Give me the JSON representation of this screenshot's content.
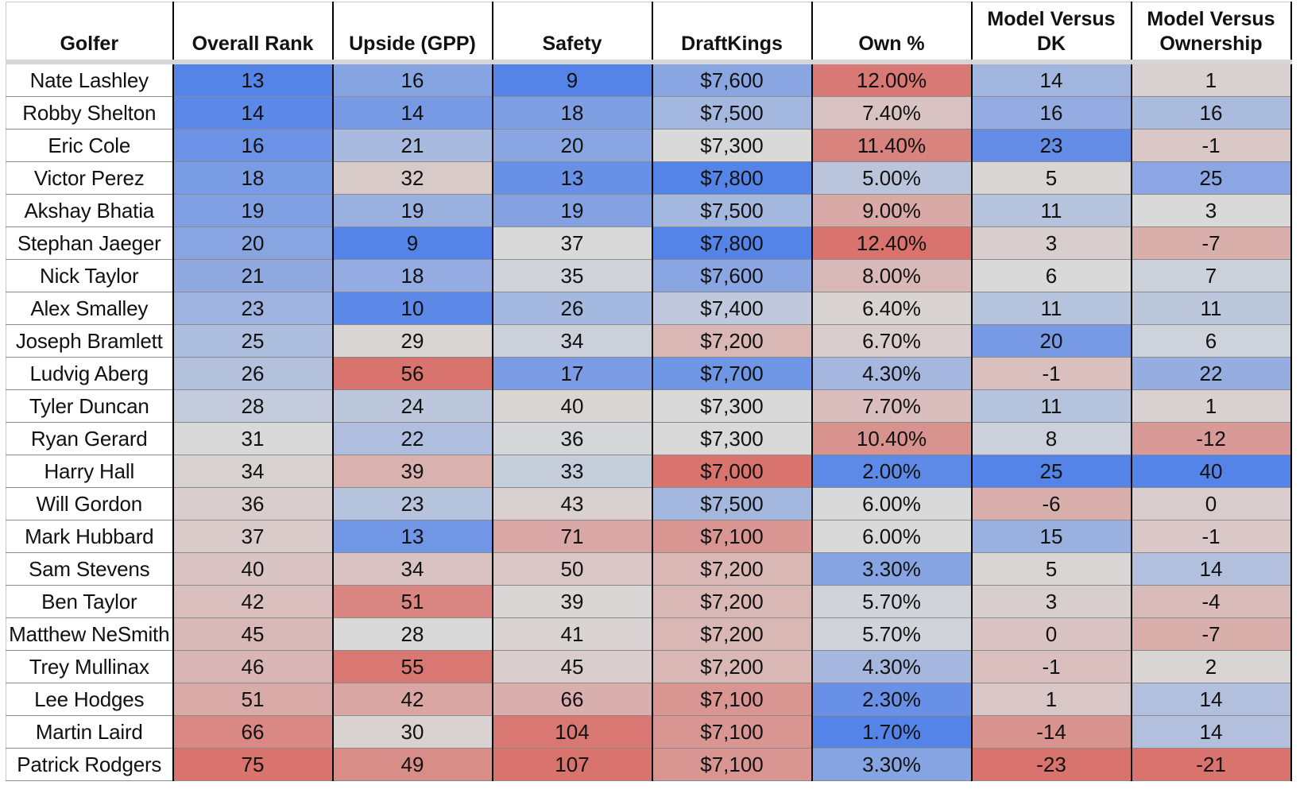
{
  "spreadsheet": {
    "columns": [
      "Golfer",
      "Overall Rank",
      "Upside (GPP)",
      "Safety",
      "DraftKings",
      "Own %",
      "Model Versus DK",
      "Model Versus Ownership"
    ],
    "rows": [
      {
        "golfer": "Nate Lashley",
        "overall_rank": "13",
        "upside_gpp": "16",
        "safety": "9",
        "draftkings": "$7,600",
        "own_pct": "12.00%",
        "model_vs_dk": "14",
        "model_vs_ownership": "1"
      },
      {
        "golfer": "Robby Shelton",
        "overall_rank": "14",
        "upside_gpp": "14",
        "safety": "18",
        "draftkings": "$7,500",
        "own_pct": "7.40%",
        "model_vs_dk": "16",
        "model_vs_ownership": "16"
      },
      {
        "golfer": "Eric Cole",
        "overall_rank": "16",
        "upside_gpp": "21",
        "safety": "20",
        "draftkings": "$7,300",
        "own_pct": "11.40%",
        "model_vs_dk": "23",
        "model_vs_ownership": "-1"
      },
      {
        "golfer": "Victor Perez",
        "overall_rank": "18",
        "upside_gpp": "32",
        "safety": "13",
        "draftkings": "$7,800",
        "own_pct": "5.00%",
        "model_vs_dk": "5",
        "model_vs_ownership": "25"
      },
      {
        "golfer": "Akshay Bhatia",
        "overall_rank": "19",
        "upside_gpp": "19",
        "safety": "19",
        "draftkings": "$7,500",
        "own_pct": "9.00%",
        "model_vs_dk": "11",
        "model_vs_ownership": "3"
      },
      {
        "golfer": "Stephan Jaeger",
        "overall_rank": "20",
        "upside_gpp": "9",
        "safety": "37",
        "draftkings": "$7,800",
        "own_pct": "12.40%",
        "model_vs_dk": "3",
        "model_vs_ownership": "-7"
      },
      {
        "golfer": "Nick Taylor",
        "overall_rank": "21",
        "upside_gpp": "18",
        "safety": "35",
        "draftkings": "$7,600",
        "own_pct": "8.00%",
        "model_vs_dk": "6",
        "model_vs_ownership": "7"
      },
      {
        "golfer": "Alex Smalley",
        "overall_rank": "23",
        "upside_gpp": "10",
        "safety": "26",
        "draftkings": "$7,400",
        "own_pct": "6.40%",
        "model_vs_dk": "11",
        "model_vs_ownership": "11"
      },
      {
        "golfer": "Joseph Bramlett",
        "overall_rank": "25",
        "upside_gpp": "29",
        "safety": "34",
        "draftkings": "$7,200",
        "own_pct": "6.70%",
        "model_vs_dk": "20",
        "model_vs_ownership": "6"
      },
      {
        "golfer": "Ludvig Aberg",
        "overall_rank": "26",
        "upside_gpp": "56",
        "safety": "17",
        "draftkings": "$7,700",
        "own_pct": "4.30%",
        "model_vs_dk": "-1",
        "model_vs_ownership": "22"
      },
      {
        "golfer": "Tyler Duncan",
        "overall_rank": "28",
        "upside_gpp": "24",
        "safety": "40",
        "draftkings": "$7,300",
        "own_pct": "7.70%",
        "model_vs_dk": "11",
        "model_vs_ownership": "1"
      },
      {
        "golfer": "Ryan Gerard",
        "overall_rank": "31",
        "upside_gpp": "22",
        "safety": "36",
        "draftkings": "$7,300",
        "own_pct": "10.40%",
        "model_vs_dk": "8",
        "model_vs_ownership": "-12"
      },
      {
        "golfer": "Harry Hall",
        "overall_rank": "34",
        "upside_gpp": "39",
        "safety": "33",
        "draftkings": "$7,000",
        "own_pct": "2.00%",
        "model_vs_dk": "25",
        "model_vs_ownership": "40"
      },
      {
        "golfer": "Will Gordon",
        "overall_rank": "36",
        "upside_gpp": "23",
        "safety": "43",
        "draftkings": "$7,500",
        "own_pct": "6.00%",
        "model_vs_dk": "-6",
        "model_vs_ownership": "0"
      },
      {
        "golfer": "Mark Hubbard",
        "overall_rank": "37",
        "upside_gpp": "13",
        "safety": "71",
        "draftkings": "$7,100",
        "own_pct": "6.00%",
        "model_vs_dk": "15",
        "model_vs_ownership": "-1"
      },
      {
        "golfer": "Sam Stevens",
        "overall_rank": "40",
        "upside_gpp": "34",
        "safety": "50",
        "draftkings": "$7,200",
        "own_pct": "3.30%",
        "model_vs_dk": "5",
        "model_vs_ownership": "14"
      },
      {
        "golfer": "Ben Taylor",
        "overall_rank": "42",
        "upside_gpp": "51",
        "safety": "39",
        "draftkings": "$7,200",
        "own_pct": "5.70%",
        "model_vs_dk": "3",
        "model_vs_ownership": "-4"
      },
      {
        "golfer": "Matthew NeSmith",
        "overall_rank": "45",
        "upside_gpp": "28",
        "safety": "41",
        "draftkings": "$7,200",
        "own_pct": "5.70%",
        "model_vs_dk": "0",
        "model_vs_ownership": "-7"
      },
      {
        "golfer": "Trey Mullinax",
        "overall_rank": "46",
        "upside_gpp": "55",
        "safety": "45",
        "draftkings": "$7,200",
        "own_pct": "4.30%",
        "model_vs_dk": "-1",
        "model_vs_ownership": "2"
      },
      {
        "golfer": "Lee Hodges",
        "overall_rank": "51",
        "upside_gpp": "42",
        "safety": "66",
        "draftkings": "$7,100",
        "own_pct": "2.30%",
        "model_vs_dk": "1",
        "model_vs_ownership": "14"
      },
      {
        "golfer": "Martin Laird",
        "overall_rank": "66",
        "upside_gpp": "30",
        "safety": "104",
        "draftkings": "$7,100",
        "own_pct": "1.70%",
        "model_vs_dk": "-14",
        "model_vs_ownership": "14"
      },
      {
        "golfer": "Patrick Rodgers",
        "overall_rank": "75",
        "upside_gpp": "49",
        "safety": "107",
        "draftkings": "$7,100",
        "own_pct": "3.30%",
        "model_vs_dk": "-23",
        "model_vs_ownership": "-21"
      }
    ],
    "colors": {
      "high_blue": "#5584e8",
      "mid_neutral": "#d9d9d9",
      "low_red": "#d9736e",
      "header_background": "#ffffff",
      "grid_line": "#000000"
    }
  }
}
